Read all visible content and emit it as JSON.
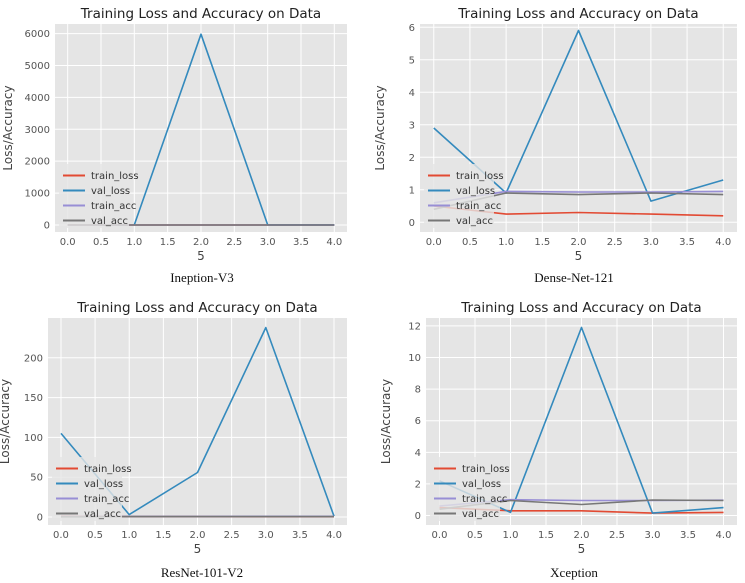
{
  "captions": [
    "Ineption-V3",
    "Dense-Net-121",
    "ResNet-101-V2",
    "Xception"
  ],
  "legend_colors": {
    "train_loss": "#e24a33",
    "val_loss": "#348abd",
    "train_acc": "#988ed5",
    "val_acc": "#777777"
  },
  "chart_data": [
    {
      "type": "line",
      "title": "Training Loss and Accuracy on Data",
      "xlabel": "5",
      "ylabel": "Loss/Accuracy",
      "x": [
        0,
        1,
        2,
        3,
        4
      ],
      "xticks": [
        "0.0",
        "0.5",
        "1.0",
        "1.5",
        "2.0",
        "2.5",
        "3.0",
        "3.5",
        "4.0"
      ],
      "ylim": [
        -220,
        6300
      ],
      "yticks": [
        0,
        1000,
        2000,
        3000,
        4000,
        5000,
        6000
      ],
      "legend": "lower-left",
      "grid": true,
      "series": [
        {
          "name": "train_loss",
          "values": [
            1.5,
            0.6,
            0.5,
            0.4,
            0.4
          ]
        },
        {
          "name": "val_loss",
          "values": [
            null,
            1.2,
            5980,
            1.3,
            1.0
          ]
        },
        {
          "name": "train_acc",
          "values": [
            0.5,
            0.8,
            0.85,
            0.88,
            0.9
          ]
        },
        {
          "name": "val_acc",
          "values": [
            0.3,
            0.6,
            0.5,
            0.5,
            0.6
          ]
        }
      ]
    },
    {
      "type": "line",
      "title": "Training Loss and Accuracy on Data",
      "xlabel": "5",
      "ylabel": "Loss/Accuracy",
      "x": [
        0,
        1,
        2,
        3,
        4
      ],
      "xticks": [
        "0.0",
        "0.5",
        "1.0",
        "1.5",
        "2.0",
        "2.5",
        "3.0",
        "3.5",
        "4.0"
      ],
      "ylim": [
        -0.3,
        6.1
      ],
      "yticks": [
        0,
        1,
        2,
        3,
        4,
        5,
        6
      ],
      "legend": "lower-left",
      "grid": true,
      "series": [
        {
          "name": "train_loss",
          "values": [
            0.5,
            0.25,
            0.3,
            0.25,
            0.2
          ]
        },
        {
          "name": "val_loss",
          "values": [
            2.9,
            0.9,
            5.9,
            0.65,
            1.3
          ]
        },
        {
          "name": "train_acc",
          "values": [
            0.6,
            0.95,
            0.93,
            0.93,
            0.95
          ]
        },
        {
          "name": "val_acc",
          "values": [
            0.4,
            0.9,
            0.85,
            0.9,
            0.85
          ]
        }
      ]
    },
    {
      "type": "line",
      "title": "Training Loss and Accuracy on Data",
      "xlabel": "5",
      "ylabel": "Loss/Accuracy",
      "x": [
        0,
        1,
        2,
        3,
        4
      ],
      "xticks": [
        "0.0",
        "0.5",
        "1.0",
        "1.5",
        "2.0",
        "2.5",
        "3.0",
        "3.5",
        "4.0"
      ],
      "ylim": [
        -10,
        250
      ],
      "yticks": [
        0,
        50,
        100,
        150,
        200
      ],
      "legend": "lower-left",
      "grid": true,
      "series": [
        {
          "name": "train_loss",
          "values": [
            1.0,
            0.5,
            0.5,
            0.4,
            0.4
          ]
        },
        {
          "name": "val_loss",
          "values": [
            105,
            3,
            56,
            238,
            1
          ]
        },
        {
          "name": "train_acc",
          "values": [
            0.5,
            0.8,
            0.85,
            0.9,
            0.9
          ]
        },
        {
          "name": "val_acc",
          "values": [
            0.3,
            0.6,
            0.6,
            0.6,
            0.6
          ]
        }
      ]
    },
    {
      "type": "line",
      "title": "Training Loss and Accuracy on Data",
      "xlabel": "5",
      "ylabel": "Loss/Accuracy",
      "x": [
        0,
        1,
        2,
        3,
        4
      ],
      "xticks": [
        "0.0",
        "0.5",
        "1.0",
        "1.5",
        "2.0",
        "2.5",
        "3.0",
        "3.5",
        "4.0"
      ],
      "ylim": [
        -0.6,
        12.5
      ],
      "yticks": [
        0,
        2,
        4,
        6,
        8,
        10,
        12
      ],
      "legend": "lower-left",
      "grid": true,
      "series": [
        {
          "name": "train_loss",
          "values": [
            0.5,
            0.3,
            0.3,
            0.15,
            0.2
          ]
        },
        {
          "name": "val_loss",
          "values": [
            2.2,
            0.2,
            11.9,
            0.15,
            0.5
          ]
        },
        {
          "name": "train_acc",
          "values": [
            0.6,
            1.0,
            0.95,
            0.95,
            0.97
          ]
        },
        {
          "name": "val_acc",
          "values": [
            0.4,
            0.95,
            0.7,
            0.98,
            0.95
          ]
        }
      ]
    }
  ]
}
